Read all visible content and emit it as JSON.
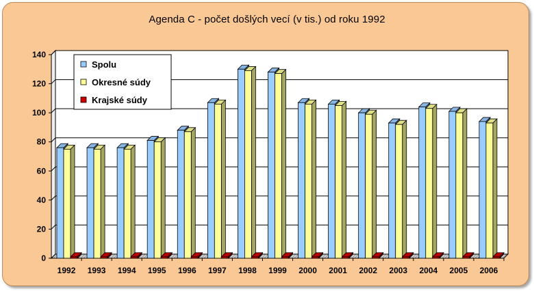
{
  "chart_data": {
    "type": "bar",
    "title": "Agenda C - počet došlých vecí (v tis.) od roku 1992",
    "xlabel": "",
    "ylabel": "",
    "ylim": [
      0,
      140
    ],
    "yticks": [
      0,
      20,
      40,
      60,
      80,
      100,
      120,
      140
    ],
    "grid": true,
    "legend_position": "top-left",
    "categories": [
      "1992",
      "1993",
      "1994",
      "1995",
      "1996",
      "1997",
      "1998",
      "1999",
      "2000",
      "2001",
      "2002",
      "2003",
      "2004",
      "2005",
      "2006"
    ],
    "series": [
      {
        "name": "Spolu",
        "color": "#99ccff",
        "values": [
          76,
          76,
          76,
          81,
          88,
          107,
          130,
          128,
          107,
          106,
          100,
          93,
          104,
          101,
          94
        ]
      },
      {
        "name": "Okresné súdy",
        "color": "#ffff99",
        "values": [
          75,
          75,
          75,
          80,
          87,
          106,
          129,
          127,
          106,
          105,
          99,
          92,
          103,
          100,
          93
        ]
      },
      {
        "name": "Krajské súdy",
        "color": "#cc0000",
        "values": [
          1,
          1,
          1,
          1,
          1,
          1,
          1,
          1,
          1,
          1,
          1,
          1,
          1,
          1,
          1
        ]
      }
    ]
  }
}
